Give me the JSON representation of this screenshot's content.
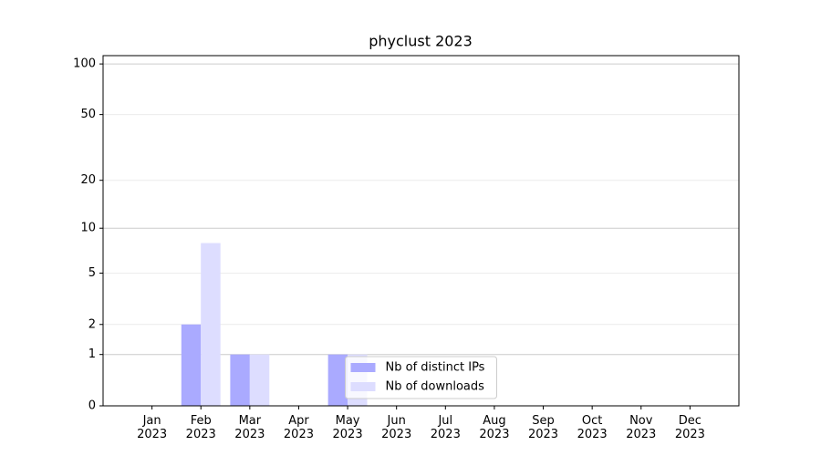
{
  "chart_data": {
    "type": "bar",
    "title": "phyclust 2023",
    "categories": [
      "Jan 2023",
      "Feb 2023",
      "Mar 2023",
      "Apr 2023",
      "May 2023",
      "Jun 2023",
      "Jul 2023",
      "Aug 2023",
      "Sep 2023",
      "Oct 2023",
      "Nov 2023",
      "Dec 2023"
    ],
    "series": [
      {
        "name": "Nb of distinct IPs",
        "color": "#aaaaff",
        "values": [
          0,
          2,
          1,
          0,
          1,
          0,
          0,
          0,
          0,
          0,
          0,
          0
        ]
      },
      {
        "name": "Nb of downloads",
        "color": "#ddddff",
        "values": [
          0,
          8,
          1,
          0,
          1,
          0,
          0,
          0,
          0,
          0,
          0,
          0
        ]
      }
    ],
    "y_scale": "symlog",
    "ylim": [
      0,
      112
    ],
    "yticks": [
      0,
      1,
      2,
      5,
      10,
      20,
      50,
      100
    ],
    "grid": true,
    "legend": "lower center"
  }
}
